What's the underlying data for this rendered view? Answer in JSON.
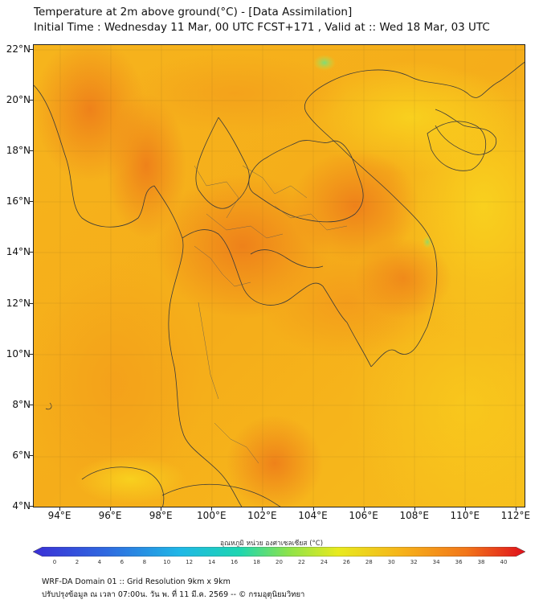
{
  "title_line1": "Temperature at 2m above ground(°C) - [Data Assimilation]",
  "title_line2": "Initial Time : Wednesday 11 Mar, 00 UTC FCST+171 , Valid at :: Wed 18 Mar, 03 UTC",
  "lat_labels": [
    "22°N",
    "20°N",
    "18°N",
    "16°N",
    "14°N",
    "12°N",
    "10°N",
    "8°N",
    "6°N",
    "4°N"
  ],
  "lon_labels": [
    "94°E",
    "96°E",
    "98°E",
    "100°E",
    "102°E",
    "104°E",
    "106°E",
    "108°E",
    "110°E",
    "112°E"
  ],
  "colorbar": {
    "title": "อุณหภูมิ หน่วย องศาเซลเซียส (°C)",
    "ticks": [
      "0",
      "2",
      "4",
      "6",
      "8",
      "10",
      "12",
      "14",
      "16",
      "18",
      "20",
      "22",
      "24",
      "26",
      "28",
      "30",
      "32",
      "34",
      "36",
      "38",
      "40"
    ],
    "min_color": "#3a2fd6",
    "max_color": "#e0101c"
  },
  "footer_line1": "WRF-DA Domain 01 :: Grid Resolution 9km x 9km",
  "footer_line2": "ปรับปรุงข้อมูล ณ เวลา 07:00น. วัน พ. ที่ 11 มี.ค. 2569 -- © กรมอุตุนิยมวิทยา",
  "colors": {
    "land_hot": "#f08a1e",
    "land_warm": "#f5a81a",
    "sea": "#f7c21c",
    "cool_patch": "#9ee06a",
    "border": "#3a3a3a"
  }
}
